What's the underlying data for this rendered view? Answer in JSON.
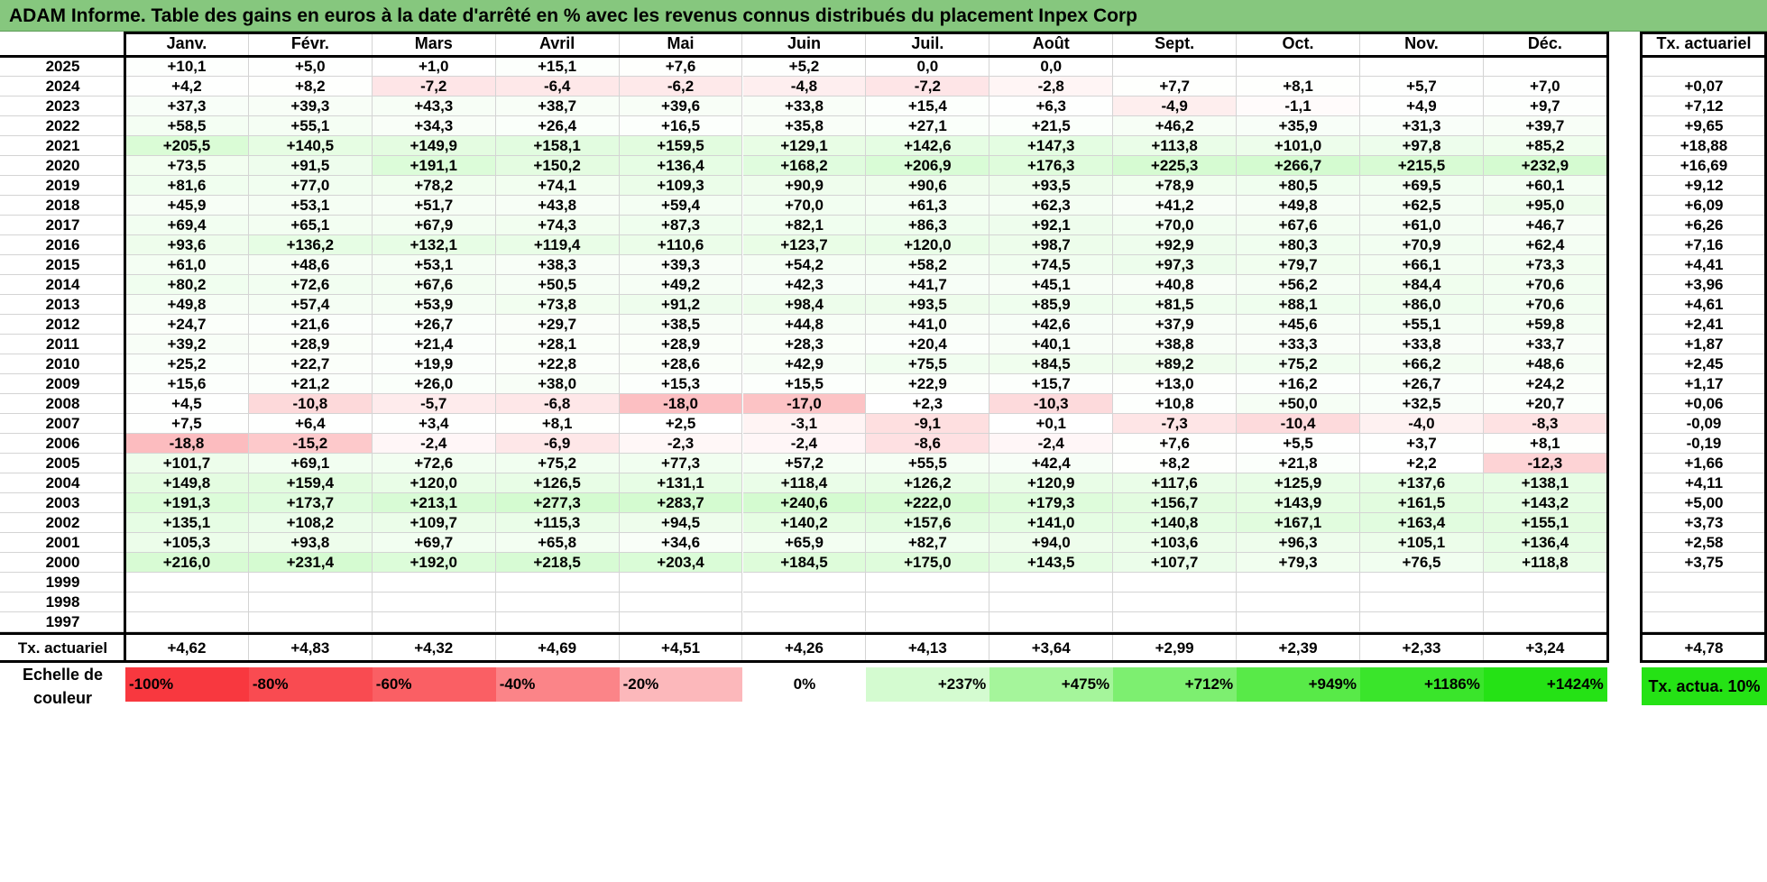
{
  "title": "ADAM Informe. Table des gains en euros à la date d'arrêté en % avec les revenus connus distribués du placement Inpex Corp",
  "months": [
    "Janv.",
    "Févr.",
    "Mars",
    "Avril",
    "Mai",
    "Juin",
    "Juil.",
    "Août",
    "Sept.",
    "Oct.",
    "Nov.",
    "Déc."
  ],
  "actuarial_header": "Tx. actuariel",
  "rows": [
    {
      "year": "2025",
      "values": [
        "+10,1",
        "+5,0",
        "+1,0",
        "+15,1",
        "+7,6",
        "+5,2",
        "0,0",
        "0,0",
        "",
        "",
        "",
        ""
      ],
      "rate": ""
    },
    {
      "year": "2024",
      "values": [
        "+4,2",
        "+8,2",
        "-7,2",
        "-6,4",
        "-6,2",
        "-4,8",
        "-7,2",
        "-2,8",
        "+7,7",
        "+8,1",
        "+5,7",
        "+7,0"
      ],
      "rate": "+0,07"
    },
    {
      "year": "2023",
      "values": [
        "+37,3",
        "+39,3",
        "+43,3",
        "+38,7",
        "+39,6",
        "+33,8",
        "+15,4",
        "+6,3",
        "-4,9",
        "-1,1",
        "+4,9",
        "+9,7"
      ],
      "rate": "+7,12"
    },
    {
      "year": "2022",
      "values": [
        "+58,5",
        "+55,1",
        "+34,3",
        "+26,4",
        "+16,5",
        "+35,8",
        "+27,1",
        "+21,5",
        "+46,2",
        "+35,9",
        "+31,3",
        "+39,7"
      ],
      "rate": "+9,65"
    },
    {
      "year": "2021",
      "values": [
        "+205,5",
        "+140,5",
        "+149,9",
        "+158,1",
        "+159,5",
        "+129,1",
        "+142,6",
        "+147,3",
        "+113,8",
        "+101,0",
        "+97,8",
        "+85,2"
      ],
      "rate": "+18,88"
    },
    {
      "year": "2020",
      "values": [
        "+73,5",
        "+91,5",
        "+191,1",
        "+150,2",
        "+136,4",
        "+168,2",
        "+206,9",
        "+176,3",
        "+225,3",
        "+266,7",
        "+215,5",
        "+232,9"
      ],
      "rate": "+16,69"
    },
    {
      "year": "2019",
      "values": [
        "+81,6",
        "+77,0",
        "+78,2",
        "+74,1",
        "+109,3",
        "+90,9",
        "+90,6",
        "+93,5",
        "+78,9",
        "+80,5",
        "+69,5",
        "+60,1"
      ],
      "rate": "+9,12"
    },
    {
      "year": "2018",
      "values": [
        "+45,9",
        "+53,1",
        "+51,7",
        "+43,8",
        "+59,4",
        "+70,0",
        "+61,3",
        "+62,3",
        "+41,2",
        "+49,8",
        "+62,5",
        "+95,0"
      ],
      "rate": "+6,09"
    },
    {
      "year": "2017",
      "values": [
        "+69,4",
        "+65,1",
        "+67,9",
        "+74,3",
        "+87,3",
        "+82,1",
        "+86,3",
        "+92,1",
        "+70,0",
        "+67,6",
        "+61,0",
        "+46,7"
      ],
      "rate": "+6,26"
    },
    {
      "year": "2016",
      "values": [
        "+93,6",
        "+136,2",
        "+132,1",
        "+119,4",
        "+110,6",
        "+123,7",
        "+120,0",
        "+98,7",
        "+92,9",
        "+80,3",
        "+70,9",
        "+62,4"
      ],
      "rate": "+7,16"
    },
    {
      "year": "2015",
      "values": [
        "+61,0",
        "+48,6",
        "+53,1",
        "+38,3",
        "+39,3",
        "+54,2",
        "+58,2",
        "+74,5",
        "+97,3",
        "+79,7",
        "+66,1",
        "+73,3"
      ],
      "rate": "+4,41"
    },
    {
      "year": "2014",
      "values": [
        "+80,2",
        "+72,6",
        "+67,6",
        "+50,5",
        "+49,2",
        "+42,3",
        "+41,7",
        "+45,1",
        "+40,8",
        "+56,2",
        "+84,4",
        "+70,6"
      ],
      "rate": "+3,96"
    },
    {
      "year": "2013",
      "values": [
        "+49,8",
        "+57,4",
        "+53,9",
        "+73,8",
        "+91,2",
        "+98,4",
        "+93,5",
        "+85,9",
        "+81,5",
        "+88,1",
        "+86,0",
        "+70,6"
      ],
      "rate": "+4,61"
    },
    {
      "year": "2012",
      "values": [
        "+24,7",
        "+21,6",
        "+26,7",
        "+29,7",
        "+38,5",
        "+44,8",
        "+41,0",
        "+42,6",
        "+37,9",
        "+45,6",
        "+55,1",
        "+59,8"
      ],
      "rate": "+2,41"
    },
    {
      "year": "2011",
      "values": [
        "+39,2",
        "+28,9",
        "+21,4",
        "+28,1",
        "+28,9",
        "+28,3",
        "+20,4",
        "+40,1",
        "+38,8",
        "+33,3",
        "+33,8",
        "+33,7"
      ],
      "rate": "+1,87"
    },
    {
      "year": "2010",
      "values": [
        "+25,2",
        "+22,7",
        "+19,9",
        "+22,8",
        "+28,6",
        "+42,9",
        "+75,5",
        "+84,5",
        "+89,2",
        "+75,2",
        "+66,2",
        "+48,6"
      ],
      "rate": "+2,45"
    },
    {
      "year": "2009",
      "values": [
        "+15,6",
        "+21,2",
        "+26,0",
        "+38,0",
        "+15,3",
        "+15,5",
        "+22,9",
        "+15,7",
        "+13,0",
        "+16,2",
        "+26,7",
        "+24,2"
      ],
      "rate": "+1,17"
    },
    {
      "year": "2008",
      "values": [
        "+4,5",
        "-10,8",
        "-5,7",
        "-6,8",
        "-18,0",
        "-17,0",
        "+2,3",
        "-10,3",
        "+10,8",
        "+50,0",
        "+32,5",
        "+20,7"
      ],
      "rate": "+0,06"
    },
    {
      "year": "2007",
      "values": [
        "+7,5",
        "+6,4",
        "+3,4",
        "+8,1",
        "+2,5",
        "-3,1",
        "-9,1",
        "+0,1",
        "-7,3",
        "-10,4",
        "-4,0",
        "-8,3"
      ],
      "rate": "-0,09"
    },
    {
      "year": "2006",
      "values": [
        "-18,8",
        "-15,2",
        "-2,4",
        "-6,9",
        "-2,3",
        "-2,4",
        "-8,6",
        "-2,4",
        "+7,6",
        "+5,5",
        "+3,7",
        "+8,1"
      ],
      "rate": "-0,19"
    },
    {
      "year": "2005",
      "values": [
        "+101,7",
        "+69,1",
        "+72,6",
        "+75,2",
        "+77,3",
        "+57,2",
        "+55,5",
        "+42,4",
        "+8,2",
        "+21,8",
        "+2,2",
        "-12,3"
      ],
      "rate": "+1,66"
    },
    {
      "year": "2004",
      "values": [
        "+149,8",
        "+159,4",
        "+120,0",
        "+126,5",
        "+131,1",
        "+118,4",
        "+126,2",
        "+120,9",
        "+117,6",
        "+125,9",
        "+137,6",
        "+138,1"
      ],
      "rate": "+4,11"
    },
    {
      "year": "2003",
      "values": [
        "+191,3",
        "+173,7",
        "+213,1",
        "+277,3",
        "+283,7",
        "+240,6",
        "+222,0",
        "+179,3",
        "+156,7",
        "+143,9",
        "+161,5",
        "+143,2"
      ],
      "rate": "+5,00"
    },
    {
      "year": "2002",
      "values": [
        "+135,1",
        "+108,2",
        "+109,7",
        "+115,3",
        "+94,5",
        "+140,2",
        "+157,6",
        "+141,0",
        "+140,8",
        "+167,1",
        "+163,4",
        "+155,1"
      ],
      "rate": "+3,73"
    },
    {
      "year": "2001",
      "values": [
        "+105,3",
        "+93,8",
        "+69,7",
        "+65,8",
        "+34,6",
        "+65,9",
        "+82,7",
        "+94,0",
        "+103,6",
        "+96,3",
        "+105,1",
        "+136,4"
      ],
      "rate": "+2,58"
    },
    {
      "year": "2000",
      "values": [
        "+216,0",
        "+231,4",
        "+192,0",
        "+218,5",
        "+203,4",
        "+184,5",
        "+175,0",
        "+143,5",
        "+107,7",
        "+79,3",
        "+76,5",
        "+118,8"
      ],
      "rate": "+3,75"
    },
    {
      "year": "1999",
      "values": [
        "",
        "",
        "",
        "",
        "",
        "",
        "",
        "",
        "",
        "",
        "",
        ""
      ],
      "rate": ""
    },
    {
      "year": "1998",
      "values": [
        "",
        "",
        "",
        "",
        "",
        "",
        "",
        "",
        "",
        "",
        "",
        ""
      ],
      "rate": ""
    },
    {
      "year": "1997",
      "values": [
        "",
        "",
        "",
        "",
        "",
        "",
        "",
        "",
        "",
        "",
        "",
        ""
      ],
      "rate": ""
    }
  ],
  "footer": {
    "label": "Tx. actuariel",
    "values": [
      "+4,62",
      "+4,83",
      "+4,32",
      "+4,69",
      "+4,51",
      "+4,26",
      "+4,13",
      "+3,64",
      "+2,99",
      "+2,39",
      "+2,33",
      "+3,24"
    ],
    "rate": "+4,78"
  },
  "legend": {
    "label": "Echelle de couleur",
    "scale": [
      {
        "text": "-100%",
        "color": "#f8383f"
      },
      {
        "text": "-80%",
        "color": "#f94b51"
      },
      {
        "text": "-60%",
        "color": "#fa5f64"
      },
      {
        "text": "-40%",
        "color": "#fb8488"
      },
      {
        "text": "-20%",
        "color": "#fcb8bb"
      },
      {
        "text": "0%",
        "color": "#ffffff"
      },
      {
        "text": "+237%",
        "color": "#d4fbd0"
      },
      {
        "text": "+475%",
        "color": "#a5f59b"
      },
      {
        "text": "+712%",
        "color": "#7def70"
      },
      {
        "text": "+949%",
        "color": "#58ea48"
      },
      {
        "text": "+1186%",
        "color": "#3ae52b"
      },
      {
        "text": "+1424%",
        "color": "#25e215"
      }
    ],
    "rate_label": "Tx. actua. 10%",
    "rate_color": "#25e215"
  },
  "colors": {
    "title_bg": "#86c77e",
    "grid": "#d4d4d4",
    "frame": "#000000"
  }
}
